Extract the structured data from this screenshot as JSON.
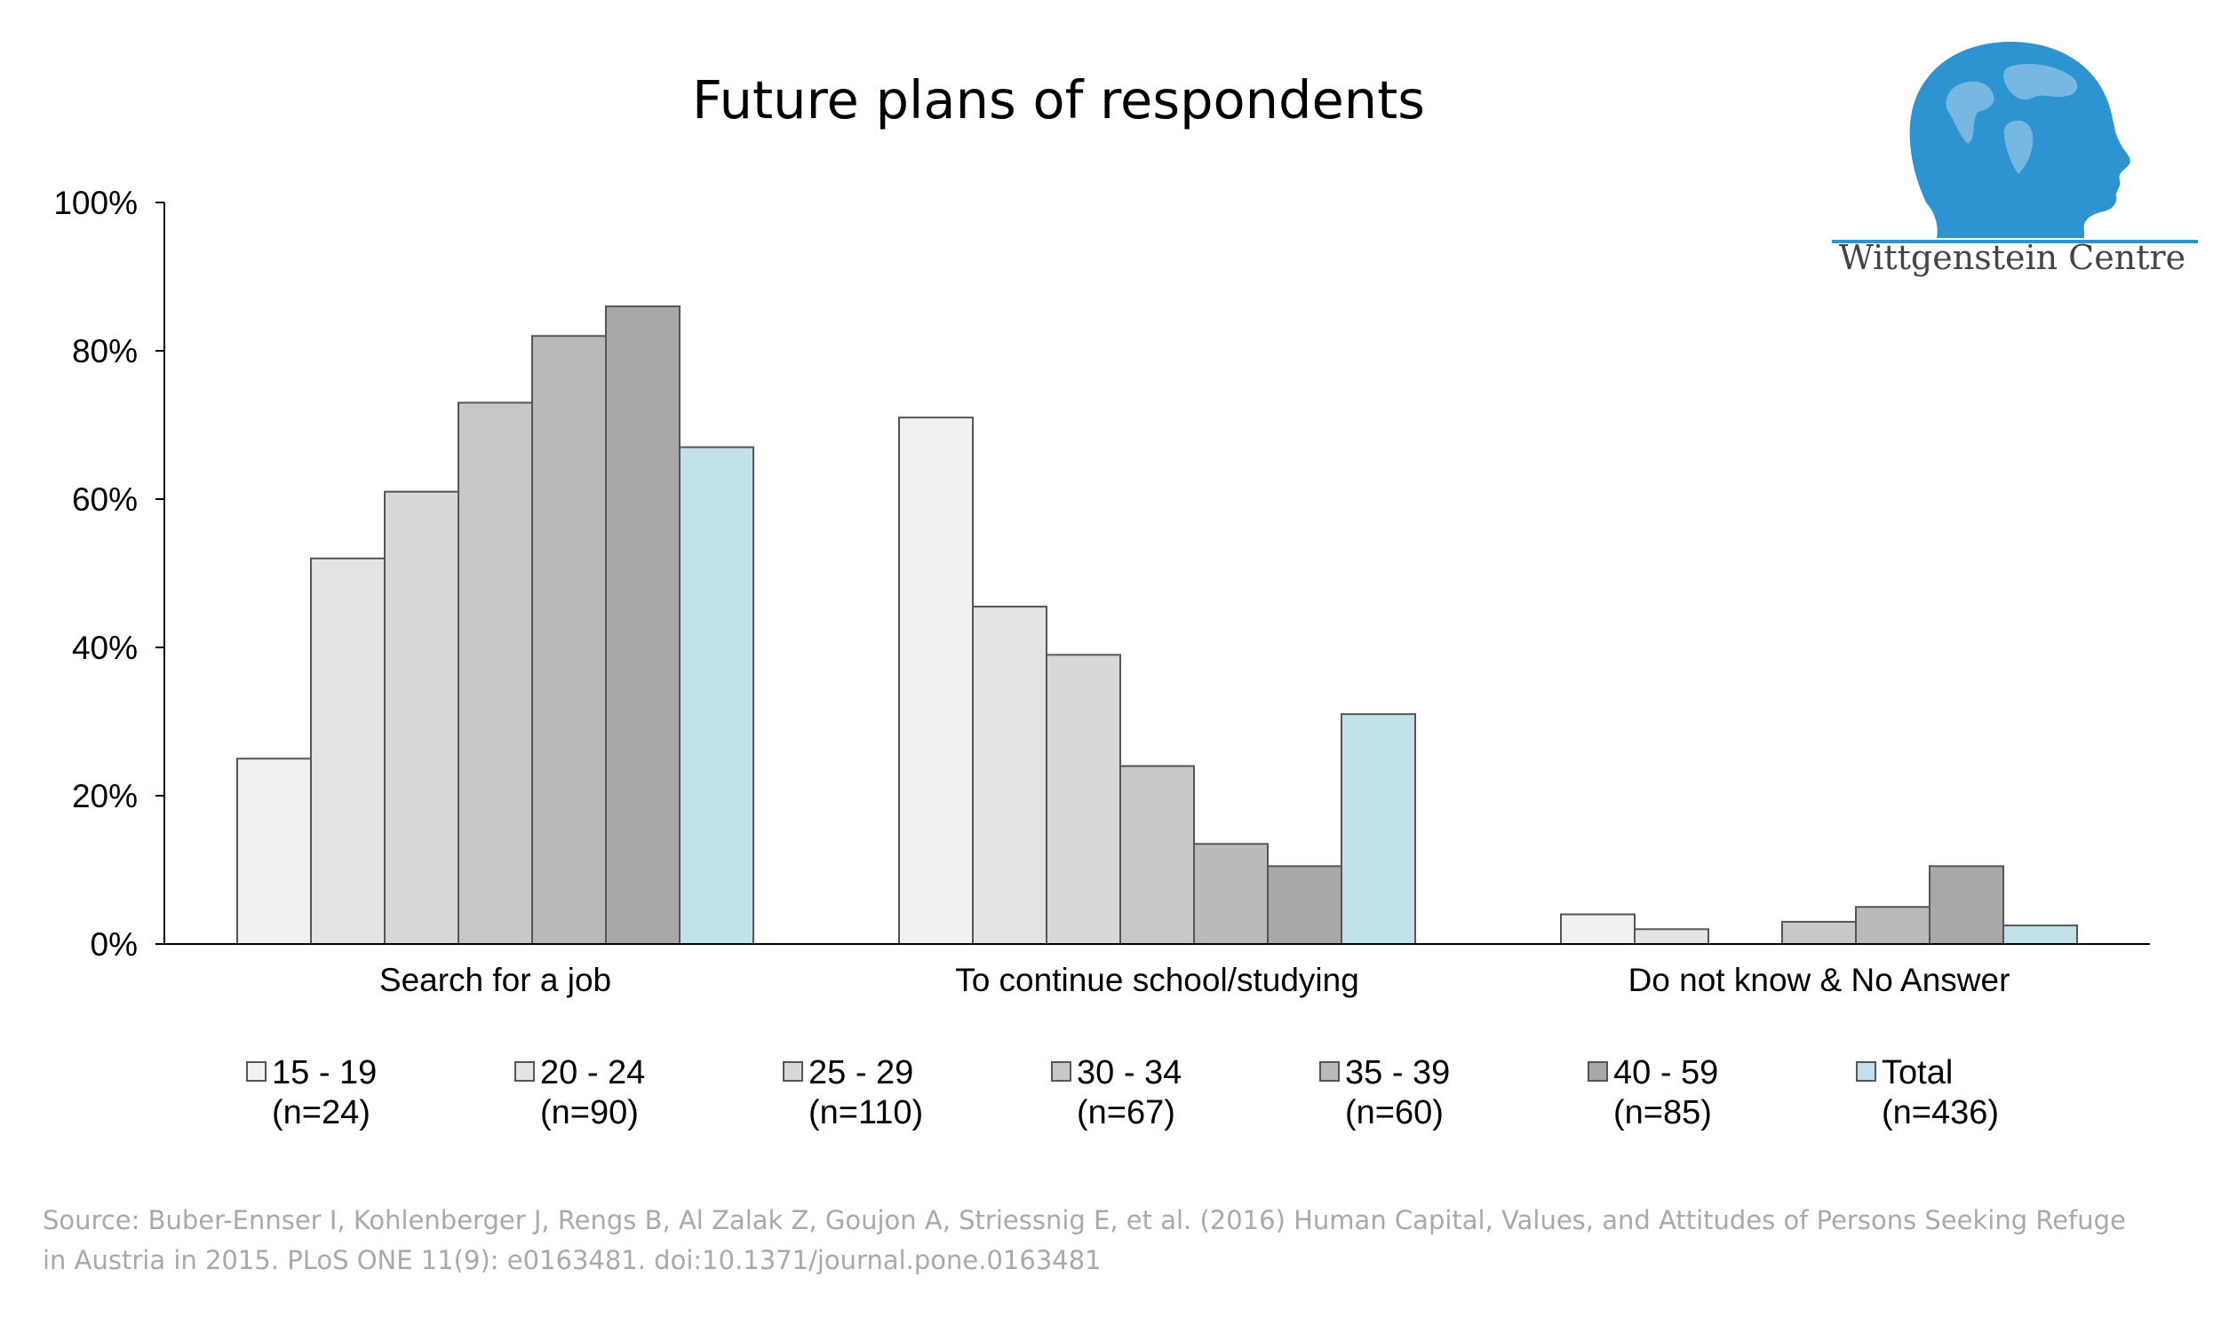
{
  "chart_data": {
    "type": "bar",
    "title": "Future plans of respondents",
    "xlabel": "",
    "ylabel": "",
    "ylim": [
      0,
      100
    ],
    "yticks": [
      "0%",
      "20%",
      "40%",
      "60%",
      "80%",
      "100%"
    ],
    "categories": [
      "Search for a job",
      "To continue school/studying",
      "Do not know & No Answer"
    ],
    "series": [
      {
        "name": "15 - 19",
        "n": "(n=24)",
        "values": [
          25,
          71,
          4
        ],
        "color": "#f1f1f1"
      },
      {
        "name": "20 - 24",
        "n": "(n=90)",
        "values": [
          52,
          45.5,
          2
        ],
        "color": "#e4e4e4"
      },
      {
        "name": "25 - 29",
        "n": "(n=110)",
        "values": [
          61,
          39,
          0
        ],
        "color": "#d8d8d8"
      },
      {
        "name": "30 - 34",
        "n": "(n=67)",
        "values": [
          73,
          24,
          3
        ],
        "color": "#c8c8c8"
      },
      {
        "name": "35 - 39",
        "n": "(n=60)",
        "values": [
          82,
          13.5,
          5
        ],
        "color": "#bababa"
      },
      {
        "name": "40 - 59",
        "n": "(n=85)",
        "values": [
          86,
          10.5,
          10.5
        ],
        "color": "#a8a8a8"
      },
      {
        "name": "Total",
        "n": "(n=436)",
        "values": [
          67,
          31,
          2.5
        ],
        "color": "#c2e2ea"
      }
    ],
    "legend_position": "bottom",
    "grid": false
  },
  "logo": {
    "text": "Wittgenstein Centre",
    "color": "#2d93d1"
  },
  "source": {
    "line1": "Source: Buber-Ennser I, Kohlenberger J, Rengs B, Al Zalak Z, Goujon A, Striessnig E, et al. (2016) Human Capital, Values, and Attitudes of Persons Seeking Refuge",
    "line2": "in Austria in 2015. PLoS ONE 11(9): e0163481. doi:10.1371/journal.pone.0163481"
  }
}
